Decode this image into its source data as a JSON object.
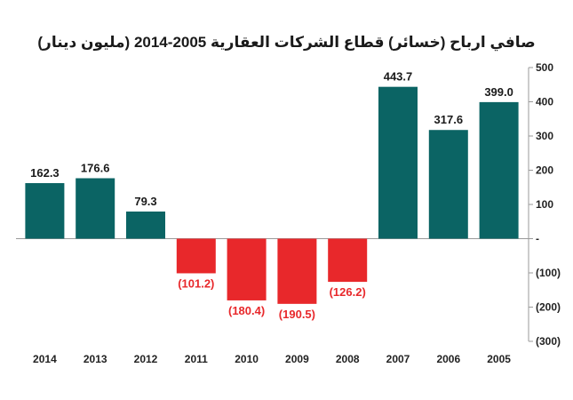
{
  "chart_data": {
    "type": "bar",
    "title": "صافي ارباح (خسائر) قطاع الشركات العقارية 2005-2014 (مليون دينار)",
    "categories": [
      "2014",
      "2013",
      "2012",
      "2011",
      "2010",
      "2009",
      "2008",
      "2007",
      "2006",
      "2005"
    ],
    "values": [
      162.3,
      176.6,
      79.3,
      -101.2,
      -180.4,
      -190.5,
      -126.2,
      443.7,
      317.6,
      399.0
    ],
    "value_labels": [
      "162.3",
      "176.6",
      "79.3",
      "(101.2)",
      "(180.4)",
      "(190.5)",
      "(126.2)",
      "443.7",
      "317.6",
      "399.0"
    ],
    "ylim": [
      -300,
      500
    ],
    "yticks": [
      500,
      400,
      300,
      200,
      100,
      0,
      -100,
      -200,
      -300
    ],
    "ytick_labels": [
      "500",
      "400",
      "300",
      "200",
      "100",
      "-",
      "(100)",
      "(200)",
      "(300)"
    ],
    "y_axis_position": "right",
    "grid": false,
    "colors": {
      "positive": "#0b6464",
      "negative": "#e8282b",
      "positive_label": "#1a1a1a",
      "negative_label": "#e8282b",
      "axis": "#999999"
    }
  }
}
